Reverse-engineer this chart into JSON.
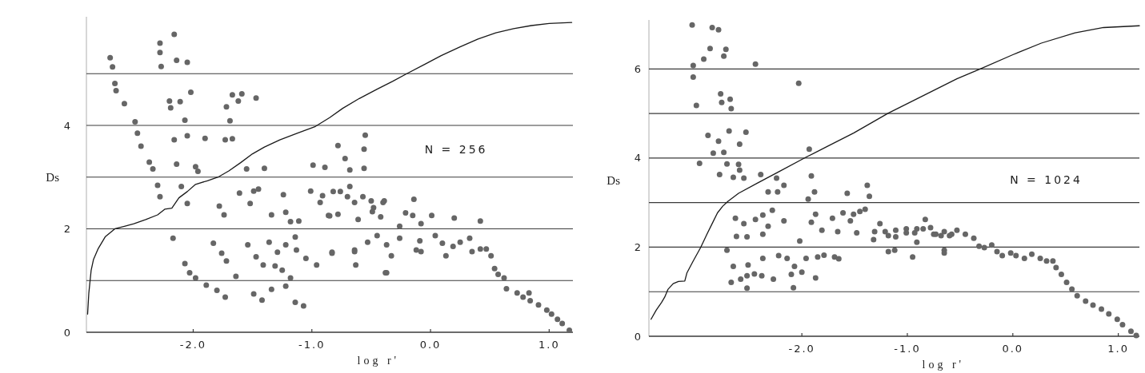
{
  "chart_data": [
    {
      "type": "scatter",
      "xlabel": "log r'",
      "ylabel": "Ds",
      "annotations": [
        "N = 256"
      ],
      "xlim": [
        -2.9,
        1.2
      ],
      "xticks": [
        {
          "value": -2,
          "label": "-2.0"
        },
        {
          "value": -1,
          "label": "-1.0"
        },
        {
          "value": 0,
          "label": "0.0"
        },
        {
          "value": 1,
          "label": "1.0"
        }
      ],
      "ylim": [
        0,
        6.1
      ],
      "yticks": [
        0,
        {
          "value": 1,
          "label": null
        },
        2,
        {
          "value": 3,
          "label": null
        },
        4,
        {
          "value": 5,
          "label": null
        }
      ],
      "grid": "y",
      "marker": "circle",
      "series": [
        {
          "color": "#666666",
          "x": [
            -2.16,
            -2.28,
            -2.28,
            -2.7,
            -2.68,
            -2.27,
            -2.14,
            -2.05,
            -2.66,
            -2.65,
            -2.58,
            -2.2,
            -2.11,
            -2.02,
            -2.19,
            -1.67,
            -1.59,
            -1.47,
            -1.62,
            -1.72,
            -2.49,
            -2.07,
            -1.69,
            -2.47,
            -2.44,
            -2.16,
            -2.05,
            -1.9,
            -1.73,
            -1.67,
            -0.55,
            -0.78,
            -0.56,
            -2.37,
            -2.34,
            -2.14,
            -1.98,
            -1.96,
            -1.55,
            -1.4,
            -0.99,
            -0.89,
            -0.72,
            -0.68,
            -0.56,
            -2.3,
            -2.1,
            -2.28,
            -2.05,
            -1.78,
            -1.74,
            -1.61,
            -1.49,
            -1.45,
            -1.52,
            -1.34,
            -1.22,
            -1.24,
            -1.01,
            -0.93,
            -0.86,
            -0.78,
            -0.76,
            -0.68,
            -0.61,
            -0.49,
            -0.4,
            -0.21,
            -0.26,
            -1.18,
            -1.11,
            -2.17,
            -1.83,
            -1.76,
            -1.72,
            -2.07,
            -2.03,
            -1.98,
            -1.89,
            -1.8,
            -1.73,
            -1.64,
            -1.54,
            -1.47,
            -1.41,
            -1.36,
            -1.31,
            -1.25,
            -1.29,
            -1.22,
            -1.14,
            -1.13,
            -1.05,
            -0.96,
            -1.18,
            -1.49,
            -1.42,
            -1.34,
            -1.22,
            -1.14,
            -1.07,
            -0.83,
            -0.64,
            -0.53,
            -0.37,
            -0.33,
            -0.63,
            -0.37,
            -0.91,
            -0.82,
            -0.7,
            -0.64,
            -0.57,
            -0.5,
            -0.85,
            -0.42,
            -0.48,
            -0.39,
            -0.14,
            -0.15,
            -0.08,
            0.01,
            0.2,
            0.42,
            -0.45,
            -0.26,
            -0.09,
            -0.12,
            -0.08,
            0.04,
            0.1,
            0.13,
            0.19,
            0.25,
            0.33,
            0.35,
            0.42,
            0.47,
            0.51,
            0.54,
            0.57,
            0.62,
            0.64,
            0.73,
            0.78,
            0.83,
            0.84,
            0.91,
            0.98,
            1.02,
            1.07,
            1.11,
            1.17,
            -0.38,
            -0.64,
            -0.83
          ],
          "values": [
            5.76,
            5.59,
            5.41,
            5.31,
            5.13,
            5.14,
            5.26,
            5.22,
            4.81,
            4.67,
            4.42,
            4.47,
            4.46,
            4.64,
            4.34,
            4.59,
            4.61,
            4.53,
            4.47,
            4.36,
            4.07,
            4.1,
            4.09,
            3.85,
            3.6,
            3.72,
            3.8,
            3.75,
            3.72,
            3.74,
            3.81,
            3.61,
            3.54,
            3.29,
            3.16,
            3.25,
            3.2,
            3.11,
            3.16,
            3.17,
            3.23,
            3.19,
            3.36,
            3.14,
            3.17,
            2.84,
            2.82,
            2.62,
            2.49,
            2.44,
            2.27,
            2.69,
            2.73,
            2.77,
            2.49,
            2.27,
            2.32,
            2.66,
            2.73,
            2.51,
            2.26,
            2.28,
            2.72,
            2.82,
            2.18,
            2.33,
            2.51,
            2.31,
            2.05,
            2.14,
            2.15,
            1.82,
            1.72,
            1.53,
            1.38,
            1.33,
            1.15,
            1.05,
            0.91,
            0.81,
            0.68,
            1.08,
            1.69,
            1.46,
            1.3,
            1.74,
            1.28,
            1.2,
            1.55,
            1.69,
            1.84,
            1.59,
            1.43,
            1.3,
            1.05,
            0.74,
            0.62,
            0.83,
            0.89,
            0.58,
            0.51,
            1.53,
            1.59,
            1.74,
            1.69,
            1.48,
            1.3,
            1.15,
            2.64,
            2.72,
            2.62,
            2.51,
            2.62,
            2.54,
            2.25,
            2.23,
            2.41,
            2.54,
            2.57,
            2.26,
            2.1,
            2.26,
            2.21,
            2.15,
            1.87,
            1.82,
            1.77,
            1.59,
            1.56,
            1.87,
            1.72,
            1.48,
            1.66,
            1.74,
            1.82,
            1.56,
            1.61,
            1.61,
            1.48,
            1.23,
            1.12,
            1.05,
            0.84,
            0.76,
            0.68,
            0.76,
            0.61,
            0.53,
            0.43,
            0.35,
            0.25,
            0.17,
            0.04,
            1.15,
            1.56,
            1.55
          ]
        },
        {
          "type": "line",
          "marker": "none",
          "color": "#1a1a1a",
          "x": [
            -2.89,
            -2.88,
            -2.86,
            -2.84,
            -2.8,
            -2.74,
            -2.66,
            -2.58,
            -2.5,
            -2.4,
            -2.3,
            -2.24,
            -2.18,
            -2.12,
            -2.05,
            -1.98,
            -1.88,
            -1.79,
            -1.7,
            -1.6,
            -1.5,
            -1.4,
            -1.27,
            -1.12,
            -0.97,
            -0.85,
            -0.74,
            -0.6,
            -0.45,
            -0.32,
            -0.2,
            -0.05,
            0.09,
            0.25,
            0.4,
            0.55,
            0.7,
            0.85,
            1.0,
            1.19
          ],
          "values": [
            0.35,
            0.75,
            1.2,
            1.41,
            1.62,
            1.85,
            2.0,
            2.05,
            2.1,
            2.18,
            2.27,
            2.38,
            2.4,
            2.6,
            2.72,
            2.86,
            2.93,
            3.0,
            3.12,
            3.28,
            3.45,
            3.58,
            3.72,
            3.85,
            3.98,
            4.15,
            4.33,
            4.52,
            4.7,
            4.85,
            5.0,
            5.18,
            5.35,
            5.52,
            5.67,
            5.79,
            5.87,
            5.93,
            5.97,
            5.99
          ]
        }
      ]
    },
    {
      "type": "scatter",
      "xlabel": "log r'",
      "ylabel": "Ds",
      "annotations": [
        "N = 1024"
      ],
      "xlim": [
        -3.45,
        1.2
      ],
      "xticks": [
        {
          "value": -2,
          "label": "-2.0"
        },
        {
          "value": -1,
          "label": "-1.0"
        },
        {
          "value": 0,
          "label": "0.0"
        },
        {
          "value": 1,
          "label": "1.0"
        }
      ],
      "ylim": [
        0,
        7.1
      ],
      "yticks": [
        0,
        {
          "value": 1,
          "label": null
        },
        2,
        {
          "value": 3,
          "label": null
        },
        4,
        {
          "value": 5,
          "label": null
        },
        6
      ],
      "grid": "y",
      "marker": "circle",
      "series": [
        {
          "color": "#666666",
          "x": [
            -3.04,
            -2.85,
            -2.79,
            -2.87,
            -2.72,
            -2.74,
            -2.93,
            -3.03,
            -3.03,
            -2.44,
            -2.03,
            -2.77,
            -2.68,
            -2.76,
            -3.0,
            -2.67,
            -2.69,
            -2.53,
            -2.89,
            -2.79,
            -2.59,
            -2.84,
            -2.74,
            -2.97,
            -2.71,
            -2.6,
            -2.59,
            -2.78,
            -2.65,
            -2.55,
            -2.39,
            -2.24,
            -1.93,
            -1.91,
            -1.88,
            -1.94,
            -2.17,
            -2.32,
            -2.23,
            -1.57,
            -1.38,
            -1.36,
            -2.63,
            -2.55,
            -2.44,
            -2.37,
            -2.28,
            -2.32,
            -2.37,
            -2.17,
            -2.52,
            -2.62,
            -1.91,
            -1.87,
            -2.02,
            -1.81,
            -1.71,
            -1.61,
            -1.51,
            -1.45,
            -1.4,
            -1.54,
            -1.66,
            -1.48,
            -1.26,
            -1.31,
            -1.18,
            -1.32,
            -1.11,
            -1.01,
            -0.91,
            -0.83,
            -0.75,
            -0.65,
            -0.58,
            -0.91,
            -1.18,
            -1.12,
            -0.95,
            -0.65,
            -2.71,
            -2.65,
            -2.51,
            -2.37,
            -2.22,
            -2.14,
            -2.07,
            -1.96,
            -1.85,
            -1.79,
            -1.69,
            -1.65,
            -2.1,
            -2.0,
            -2.08,
            -2.52,
            -2.45,
            -2.38,
            -2.58,
            -2.67,
            -2.52,
            -2.27,
            -1.87,
            -1.21,
            -1.11,
            -1.01,
            -0.93,
            -0.85,
            -0.78,
            -0.73,
            -0.68,
            -0.6,
            -0.53,
            -0.45,
            -0.37,
            -0.32,
            -0.27,
            -0.2,
            -0.15,
            -0.1,
            -0.02,
            0.03,
            0.11,
            0.18,
            0.26,
            0.32,
            0.38,
            0.41,
            0.46,
            0.51,
            0.56,
            0.61,
            0.69,
            0.76,
            0.84,
            0.91,
            0.99,
            1.04,
            1.12,
            1.17,
            -0.65
          ],
          "values": [
            6.99,
            6.93,
            6.88,
            6.46,
            6.44,
            6.29,
            6.22,
            6.08,
            5.82,
            6.11,
            5.68,
            5.44,
            5.32,
            5.25,
            5.18,
            5.11,
            4.61,
            4.58,
            4.51,
            4.38,
            4.31,
            4.11,
            4.13,
            3.88,
            3.87,
            3.86,
            3.73,
            3.63,
            3.57,
            3.55,
            3.63,
            3.55,
            4.2,
            3.6,
            3.24,
            3.08,
            3.39,
            3.24,
            3.24,
            3.21,
            3.39,
            3.14,
            2.65,
            2.53,
            2.62,
            2.72,
            2.83,
            2.47,
            2.29,
            2.59,
            2.23,
            2.24,
            2.56,
            2.74,
            2.14,
            2.38,
            2.65,
            2.77,
            2.74,
            2.8,
            2.85,
            2.59,
            2.35,
            2.32,
            2.53,
            2.35,
            2.26,
            2.17,
            2.23,
            2.32,
            2.41,
            2.62,
            2.29,
            2.35,
            2.29,
            2.11,
            1.9,
            1.93,
            1.78,
            1.93,
            1.93,
            1.57,
            1.6,
            1.75,
            1.81,
            1.75,
            1.57,
            1.75,
            1.78,
            1.82,
            1.78,
            1.74,
            1.39,
            1.44,
            1.09,
            1.36,
            1.4,
            1.36,
            1.28,
            1.21,
            1.08,
            1.28,
            1.31,
            2.35,
            2.38,
            2.41,
            2.32,
            2.41,
            2.44,
            2.29,
            2.26,
            2.26,
            2.38,
            2.29,
            2.2,
            2.02,
            1.99,
            2.05,
            1.9,
            1.81,
            1.87,
            1.81,
            1.75,
            1.84,
            1.75,
            1.69,
            1.69,
            1.54,
            1.39,
            1.21,
            1.06,
            0.91,
            0.79,
            0.7,
            0.61,
            0.5,
            0.38,
            0.26,
            0.11,
            0.02,
            1.87
          ]
        },
        {
          "type": "line",
          "marker": "none",
          "color": "#1a1a1a",
          "x": [
            -3.43,
            -3.38,
            -3.33,
            -3.3,
            -3.27,
            -3.22,
            -3.17,
            -3.11,
            -3.09,
            -3.03,
            -2.96,
            -2.9,
            -2.85,
            -2.8,
            -2.75,
            -2.7,
            -2.6,
            -2.42,
            -2.22,
            -1.96,
            -1.76,
            -1.51,
            -1.18,
            -0.9,
            -0.53,
            -0.31,
            0.0,
            0.27,
            0.59,
            0.86,
            1.2
          ],
          "values": [
            0.38,
            0.59,
            0.76,
            0.88,
            1.05,
            1.18,
            1.23,
            1.24,
            1.42,
            1.69,
            1.99,
            2.29,
            2.53,
            2.77,
            2.92,
            3.03,
            3.21,
            3.44,
            3.69,
            4.02,
            4.26,
            4.56,
            5.01,
            5.34,
            5.78,
            6.0,
            6.32,
            6.58,
            6.81,
            6.93,
            6.97
          ]
        }
      ]
    }
  ]
}
